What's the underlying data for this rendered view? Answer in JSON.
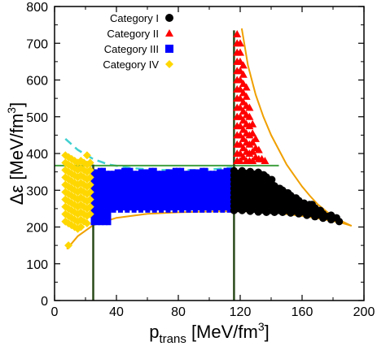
{
  "chart_data": {
    "type": "scatter",
    "xlabel_base": "p",
    "xlabel_sub": "trans",
    "xlabel_unit": " [MeV/fm",
    "xlabel_sup": "3",
    "xlabel_close": "]",
    "ylabel_main": "Δε [MeV/fm",
    "ylabel_sup": "3",
    "ylabel_close": "]",
    "xlim": [
      0,
      200
    ],
    "ylim": [
      0,
      800
    ],
    "xticks": [
      "0",
      "40",
      "80",
      "120",
      "160",
      "200"
    ],
    "yticks": [
      "0",
      "100",
      "200",
      "300",
      "400",
      "500",
      "600",
      "700",
      "800"
    ],
    "legend_position": "top-left",
    "series": [
      {
        "name": "Category I",
        "marker": "circle",
        "color": "#000000",
        "x_range": [
          116,
          184
        ],
        "y_min": [
          245,
          245,
          243,
          241,
          240,
          240,
          240,
          238,
          236,
          232,
          228,
          224,
          220,
          215
        ],
        "y_max": [
          360,
          360,
          358,
          350,
          342,
          320,
          300,
          288,
          278,
          266,
          254,
          244,
          234,
          224
        ]
      },
      {
        "name": "Category II",
        "marker": "triangle",
        "color": "#ff0000",
        "points": [
          [
            118,
            725
          ],
          [
            118,
            700
          ],
          [
            118,
            675
          ],
          [
            118,
            650
          ],
          [
            118,
            625
          ],
          [
            118,
            600
          ],
          [
            118,
            575
          ],
          [
            118,
            550
          ],
          [
            118,
            525
          ],
          [
            118,
            500
          ],
          [
            118,
            475
          ],
          [
            118,
            450
          ],
          [
            118,
            425
          ],
          [
            118,
            400
          ],
          [
            118,
            380
          ],
          [
            120,
            700
          ],
          [
            120,
            675
          ],
          [
            120,
            650
          ],
          [
            120,
            625
          ],
          [
            120,
            600
          ],
          [
            120,
            575
          ],
          [
            120,
            550
          ],
          [
            120,
            525
          ],
          [
            120,
            500
          ],
          [
            120,
            475
          ],
          [
            120,
            450
          ],
          [
            120,
            425
          ],
          [
            120,
            400
          ],
          [
            120,
            380
          ],
          [
            122,
            640
          ],
          [
            122,
            615
          ],
          [
            122,
            590
          ],
          [
            122,
            565
          ],
          [
            122,
            540
          ],
          [
            122,
            515
          ],
          [
            122,
            490
          ],
          [
            122,
            465
          ],
          [
            122,
            440
          ],
          [
            122,
            415
          ],
          [
            122,
            390
          ],
          [
            124,
            580
          ],
          [
            124,
            555
          ],
          [
            124,
            530
          ],
          [
            124,
            505
          ],
          [
            124,
            480
          ],
          [
            124,
            455
          ],
          [
            124,
            430
          ],
          [
            124,
            405
          ],
          [
            124,
            380
          ],
          [
            126,
            525
          ],
          [
            126,
            500
          ],
          [
            126,
            475
          ],
          [
            126,
            450
          ],
          [
            126,
            425
          ],
          [
            126,
            400
          ],
          [
            126,
            380
          ],
          [
            128,
            480
          ],
          [
            128,
            455
          ],
          [
            128,
            430
          ],
          [
            128,
            405
          ],
          [
            128,
            380
          ],
          [
            130,
            440
          ],
          [
            130,
            415
          ],
          [
            130,
            390
          ],
          [
            132,
            410
          ],
          [
            132,
            385
          ],
          [
            134,
            385
          ],
          [
            136,
            380
          ]
        ]
      },
      {
        "name": "Category III",
        "marker": "square",
        "color": "#0000ff",
        "x_range": [
          25,
          116
        ],
        "y_min": 245,
        "y_max": 355
      },
      {
        "name": "Category IV",
        "marker": "diamond",
        "color": "#ffd700",
        "points": [
          [
            7,
            395
          ],
          [
            7,
            375
          ],
          [
            7,
            355
          ],
          [
            7,
            335
          ],
          [
            7,
            315
          ],
          [
            7,
            295
          ],
          [
            7,
            275
          ],
          [
            7,
            255
          ],
          [
            7,
            235
          ],
          [
            7,
            215
          ],
          [
            9,
            390
          ],
          [
            9,
            370
          ],
          [
            9,
            350
          ],
          [
            9,
            330
          ],
          [
            9,
            310
          ],
          [
            9,
            290
          ],
          [
            9,
            270
          ],
          [
            9,
            250
          ],
          [
            9,
            230
          ],
          [
            9,
            210
          ],
          [
            9,
            150
          ],
          [
            11,
            385
          ],
          [
            11,
            365
          ],
          [
            11,
            345
          ],
          [
            11,
            325
          ],
          [
            11,
            305
          ],
          [
            11,
            285
          ],
          [
            11,
            265
          ],
          [
            11,
            245
          ],
          [
            11,
            225
          ],
          [
            11,
            205
          ],
          [
            13,
            380
          ],
          [
            13,
            360
          ],
          [
            13,
            340
          ],
          [
            13,
            320
          ],
          [
            13,
            300
          ],
          [
            13,
            280
          ],
          [
            13,
            260
          ],
          [
            13,
            240
          ],
          [
            13,
            220
          ],
          [
            13,
            200
          ],
          [
            15,
            375
          ],
          [
            15,
            355
          ],
          [
            15,
            335
          ],
          [
            15,
            315
          ],
          [
            15,
            295
          ],
          [
            15,
            275
          ],
          [
            15,
            255
          ],
          [
            15,
            235
          ],
          [
            15,
            215
          ],
          [
            15,
            195
          ],
          [
            17,
            380
          ],
          [
            17,
            360
          ],
          [
            17,
            340
          ],
          [
            17,
            320
          ],
          [
            17,
            300
          ],
          [
            17,
            280
          ],
          [
            17,
            260
          ],
          [
            17,
            240
          ],
          [
            17,
            220
          ],
          [
            17,
            200
          ],
          [
            19,
            375
          ],
          [
            19,
            355
          ],
          [
            19,
            335
          ],
          [
            19,
            315
          ],
          [
            19,
            295
          ],
          [
            19,
            275
          ],
          [
            19,
            255
          ],
          [
            19,
            235
          ],
          [
            19,
            215
          ],
          [
            21,
            395
          ],
          [
            21,
            370
          ],
          [
            21,
            350
          ],
          [
            21,
            330
          ],
          [
            21,
            310
          ],
          [
            21,
            290
          ],
          [
            21,
            270
          ],
          [
            21,
            250
          ],
          [
            21,
            230
          ],
          [
            21,
            210
          ],
          [
            23,
            375
          ],
          [
            23,
            355
          ],
          [
            23,
            335
          ],
          [
            23,
            315
          ],
          [
            23,
            295
          ],
          [
            23,
            275
          ],
          [
            23,
            255
          ],
          [
            23,
            235
          ]
        ]
      }
    ],
    "envelope_curve": {
      "color": "#f0a000",
      "upper": [
        [
          121,
          740
        ],
        [
          125,
          640
        ],
        [
          130,
          560
        ],
        [
          135,
          500
        ],
        [
          140,
          450
        ],
        [
          145,
          410
        ],
        [
          150,
          370
        ],
        [
          155,
          340
        ],
        [
          160,
          310
        ],
        [
          165,
          285
        ],
        [
          170,
          262
        ],
        [
          175,
          245
        ],
        [
          180,
          228
        ],
        [
          185,
          217
        ],
        [
          192,
          203
        ]
      ],
      "lower": [
        [
          8,
          140
        ],
        [
          15,
          175
        ],
        [
          25,
          205
        ],
        [
          40,
          225
        ],
        [
          60,
          236
        ],
        [
          80,
          240
        ],
        [
          100,
          242
        ],
        [
          120,
          243
        ],
        [
          140,
          240
        ],
        [
          160,
          230
        ],
        [
          175,
          220
        ],
        [
          185,
          212
        ],
        [
          192,
          203
        ]
      ]
    },
    "dashed_curve": {
      "color": "#40d0d0",
      "points": [
        [
          7,
          440
        ],
        [
          15,
          410
        ],
        [
          25,
          385
        ],
        [
          35,
          370
        ],
        [
          50,
          360
        ],
        [
          70,
          355
        ],
        [
          90,
          355
        ],
        [
          105,
          358
        ],
        [
          115,
          362
        ]
      ]
    },
    "horizontal_line": {
      "y": 367,
      "x_from": 0,
      "x_to": 145,
      "color": "#40a040"
    },
    "vertical_lines": [
      {
        "x": 25,
        "y_from": 0,
        "y_to": 370,
        "color": "#2a4a1a"
      },
      {
        "x": 116,
        "y_from": 0,
        "y_to": 735,
        "color": "#2a4a1a"
      }
    ]
  }
}
